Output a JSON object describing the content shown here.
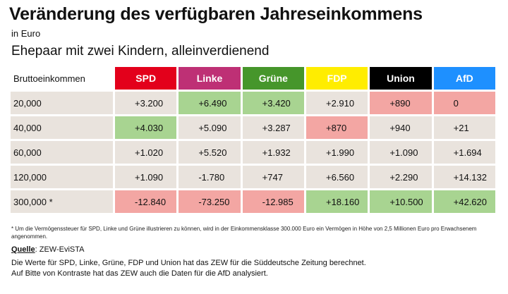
{
  "title": "Veränderung des verfügbaren Jahreseinkommens",
  "unit": "in Euro",
  "subtitle": "Ehepaar mit zwei Kindern, alleinverdienend",
  "table": {
    "row_header_label": "Bruttoeinkommen",
    "parties": [
      {
        "name": "SPD",
        "bg": "#e3001b",
        "fg": "#ffffff"
      },
      {
        "name": "Linke",
        "bg": "#be3075",
        "fg": "#ffffff"
      },
      {
        "name": "Grüne",
        "bg": "#46962b",
        "fg": "#ffffff"
      },
      {
        "name": "FDP",
        "bg": "#ffed00",
        "fg": "#ffffff"
      },
      {
        "name": "Union",
        "bg": "#000000",
        "fg": "#ffffff"
      },
      {
        "name": "AfD",
        "bg": "#1e90ff",
        "fg": "#ffffff"
      }
    ],
    "rows": [
      {
        "income": "20,000",
        "values": [
          "+3.200",
          "+6.490",
          "+3.420",
          "+2.910",
          "+890",
          "0"
        ],
        "highlight": [
          "",
          "green",
          "green",
          "",
          "red",
          "red"
        ]
      },
      {
        "income": "40,000",
        "values": [
          "+4.030",
          "+5.090",
          "+3.287",
          "+870",
          "+940",
          "+21"
        ],
        "highlight": [
          "green",
          "",
          "",
          "red",
          "",
          ""
        ]
      },
      {
        "income": "60,000",
        "values": [
          "+1.020",
          "+5.520",
          "+1.932",
          "+1.990",
          "+1.090",
          "+1.694"
        ],
        "highlight": [
          "",
          "",
          "",
          "",
          "",
          ""
        ]
      },
      {
        "income": "120,000",
        "values": [
          "+1.090",
          "-1.780",
          "+747",
          "+6.560",
          "+2.290",
          "+14.132"
        ],
        "highlight": [
          "",
          "",
          "",
          "",
          "",
          ""
        ]
      },
      {
        "income": "300,000 *",
        "values": [
          "-12.840",
          "-73.250",
          "-12.985",
          "+18.160",
          "+10.500",
          "+42.620"
        ],
        "highlight": [
          "red",
          "red",
          "red",
          "green",
          "green",
          "green"
        ]
      }
    ]
  },
  "footnote": "* Um die Vermögenssteuer für SPD, Linke und Grüne illustrieren zu können, wird in der Einkommensklasse 300.000 Euro ein Vermögen in Höhe von 2,5 Millionen Euro pro Erwachsenem angenommen.",
  "source_label": "Quelle",
  "source_value": ": ZEW-EviSTA",
  "note1": "Die Werte für SPD, Linke, Grüne, FDP und Union hat das ZEW für die Süddeutsche Zeitung berechnet.",
  "note2": "Auf Bitte von Kontraste hat das ZEW auch die Daten für die AfD analysiert."
}
